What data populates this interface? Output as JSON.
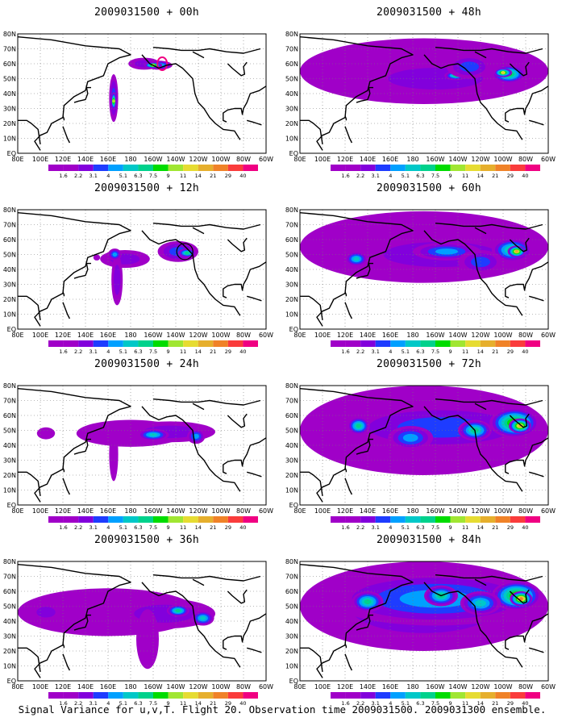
{
  "figure": {
    "caption": "Signal Variance for u,v,T. Flight 20. Observation time 2009031500. 2009031300 ensemble."
  },
  "axes": {
    "lat_labels": [
      "80N",
      "70N",
      "60N",
      "50N",
      "40N",
      "30N",
      "20N",
      "10N",
      "EQ"
    ],
    "lon_labels": [
      "80E",
      "100E",
      "120E",
      "140E",
      "160E",
      "180",
      "160W",
      "140W",
      "120W",
      "100W",
      "80W",
      "60W"
    ]
  },
  "colorbar": {
    "labels": [
      "1.6",
      "2.2",
      "3.1",
      "4",
      "5.1",
      "6.3",
      "7.5",
      "9",
      "11",
      "14",
      "21",
      "29",
      "40"
    ],
    "colors": [
      "#a000c8",
      "#8200dc",
      "#1e3cff",
      "#00a0ff",
      "#00c8c8",
      "#00d28c",
      "#00dc00",
      "#a0e632",
      "#e6dc32",
      "#e6af2d",
      "#f08228",
      "#fa3c3c",
      "#f00082"
    ]
  },
  "panels": [
    {
      "title": "2009031500 + 00h",
      "lead_h": 0
    },
    {
      "title": "2009031500 + 48h",
      "lead_h": 48
    },
    {
      "title": "2009031500 + 12h",
      "lead_h": 12
    },
    {
      "title": "2009031500 + 60h",
      "lead_h": 60
    },
    {
      "title": "2009031500 + 24h",
      "lead_h": 24
    },
    {
      "title": "2009031500 + 72h",
      "lead_h": 72
    },
    {
      "title": "2009031500 + 36h",
      "lead_h": 36
    },
    {
      "title": "2009031500 + 84h",
      "lead_h": 84
    }
  ],
  "chart_data": {
    "type": "heatmap",
    "variable": "Signal Variance for u,v,T",
    "lon_range": [
      "80E",
      "60W"
    ],
    "lat_range": [
      "EQ",
      "80N"
    ],
    "contour_levels": [
      1.6,
      2.2,
      3.1,
      4,
      5.1,
      6.3,
      7.5,
      9,
      11,
      14,
      21,
      29,
      40
    ],
    "lead_times_h": [
      0,
      12,
      24,
      36,
      48,
      60,
      72,
      84
    ],
    "map_grid": "dotted"
  }
}
